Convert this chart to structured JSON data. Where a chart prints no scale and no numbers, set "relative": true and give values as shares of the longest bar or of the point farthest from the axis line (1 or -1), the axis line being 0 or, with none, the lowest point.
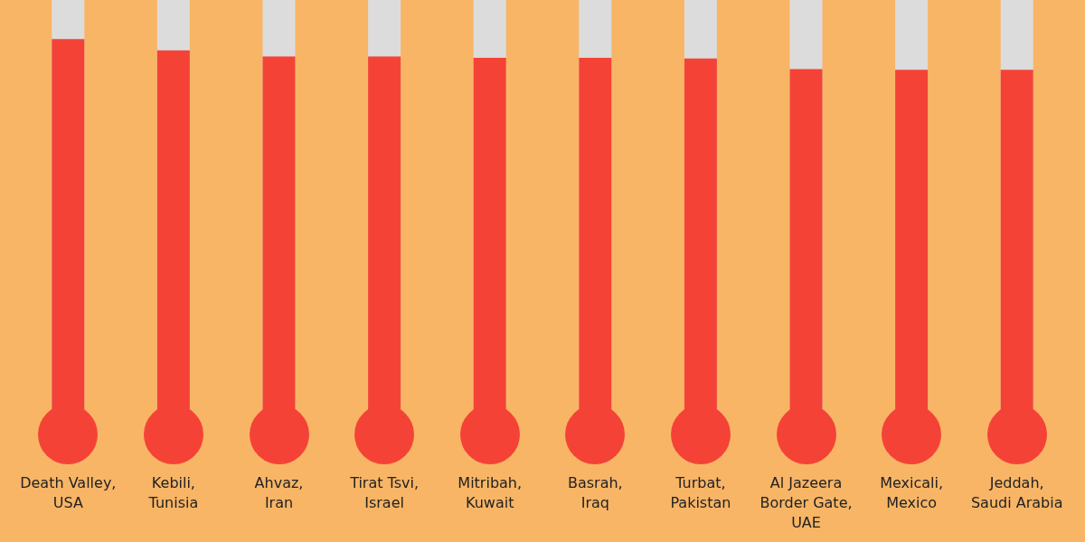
{
  "chart_data": {
    "type": "bar",
    "relative": true,
    "categories": [
      "Death Valley,\nUSA",
      "Kebili,\nTunisia",
      "Ahvaz,\nIran",
      "Tirat Tsvi,\nIsrael",
      "Mitribah,\nKuwait",
      "Basrah,\nIraq",
      "Turbat,\nPakistan",
      "Al Jazeera\nBorder Gate,\nUAE",
      "Mexicali,\nMexico",
      "Jeddah,\nSaudi Arabia"
    ],
    "values": [
      1,
      0.971,
      0.955,
      0.955,
      0.952,
      0.952,
      0.95,
      0.923,
      0.921,
      0.921
    ],
    "color": "#f44336"
  }
}
